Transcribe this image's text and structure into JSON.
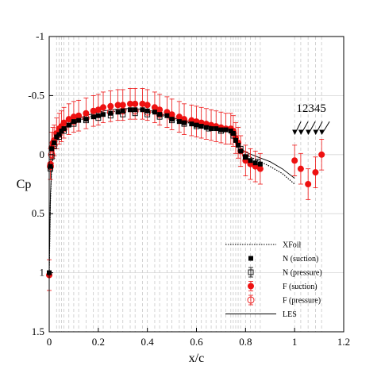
{
  "chart_data": {
    "type": "scatter",
    "xlabel": "x/c",
    "ylabel": "Cp",
    "xlim": [
      0,
      1.2
    ],
    "ylim": [
      -1,
      1.5
    ],
    "y_inverted": true,
    "xticks": [
      "0",
      "0.2",
      "0.4",
      "0.6",
      "0.8",
      "1",
      "1.2"
    ],
    "yticks": [
      "-1",
      "-0.5",
      "0",
      "0.5",
      "1",
      "1.5"
    ],
    "grid": "dashed vertical lines at pressure taps, solid horizontal lines at y ticks",
    "legend": {
      "position": "bottom-right",
      "entries": [
        "XFoil",
        "N (suction)",
        "N (pressure)",
        "F (suction)",
        "F (pressure)",
        "LES"
      ]
    },
    "annotation": {
      "text": "12345",
      "arrow_targets_x": [
        1.0,
        1.025,
        1.055,
        1.085,
        1.11
      ]
    },
    "series": [
      {
        "name": "XFoil",
        "style": "dotted",
        "x": [
          0,
          0.005,
          0.01,
          0.02,
          0.04,
          0.06,
          0.1,
          0.15,
          0.2,
          0.25,
          0.3,
          0.35,
          0.4,
          0.45,
          0.5,
          0.55,
          0.6,
          0.65,
          0.7,
          0.72,
          0.74,
          0.75,
          0.76,
          0.78,
          0.8,
          0.85,
          0.9,
          0.95,
          1.0
        ],
        "y": [
          1.0,
          0.4,
          0.1,
          -0.05,
          -0.15,
          -0.22,
          -0.28,
          -0.31,
          -0.34,
          -0.36,
          -0.38,
          -0.38,
          -0.37,
          -0.34,
          -0.3,
          -0.28,
          -0.25,
          -0.23,
          -0.22,
          -0.22,
          -0.21,
          -0.18,
          -0.12,
          -0.05,
          0.0,
          0.05,
          0.1,
          0.16,
          0.25
        ]
      },
      {
        "name": "LES",
        "style": "solid",
        "x": [
          0,
          0.005,
          0.01,
          0.02,
          0.04,
          0.06,
          0.1,
          0.15,
          0.2,
          0.25,
          0.3,
          0.35,
          0.4,
          0.45,
          0.5,
          0.55,
          0.6,
          0.65,
          0.7,
          0.72,
          0.74,
          0.75,
          0.76,
          0.78,
          0.8,
          0.85,
          0.9,
          0.95,
          1.0
        ],
        "y": [
          1.0,
          0.35,
          0.08,
          -0.08,
          -0.17,
          -0.23,
          -0.29,
          -0.33,
          -0.36,
          -0.38,
          -0.39,
          -0.39,
          -0.38,
          -0.35,
          -0.31,
          -0.29,
          -0.26,
          -0.24,
          -0.23,
          -0.22,
          -0.21,
          -0.19,
          -0.13,
          -0.06,
          -0.02,
          0.02,
          0.06,
          0.12,
          0.2
        ]
      },
      {
        "name": "N (suction)",
        "marker": "filled-square",
        "x": [
          0,
          0.005,
          0.01,
          0.02,
          0.03,
          0.04,
          0.05,
          0.06,
          0.08,
          0.1,
          0.12,
          0.15,
          0.18,
          0.2,
          0.22,
          0.25,
          0.28,
          0.3,
          0.33,
          0.35,
          0.38,
          0.4,
          0.43,
          0.45,
          0.48,
          0.5,
          0.53,
          0.55,
          0.58,
          0.6,
          0.62,
          0.64,
          0.66,
          0.68,
          0.7,
          0.72,
          0.74,
          0.75,
          0.76,
          0.77,
          0.78,
          0.8,
          0.82,
          0.84,
          0.86
        ],
        "y": [
          1.0,
          0.1,
          -0.05,
          -0.1,
          -0.15,
          -0.17,
          -0.2,
          -0.22,
          -0.25,
          -0.28,
          -0.29,
          -0.3,
          -0.32,
          -0.33,
          -0.34,
          -0.35,
          -0.36,
          -0.37,
          -0.38,
          -0.38,
          -0.38,
          -0.37,
          -0.36,
          -0.34,
          -0.33,
          -0.3,
          -0.28,
          -0.27,
          -0.26,
          -0.25,
          -0.24,
          -0.23,
          -0.22,
          -0.22,
          -0.21,
          -0.21,
          -0.2,
          -0.18,
          -0.12,
          -0.08,
          -0.03,
          0.02,
          0.05,
          0.07,
          0.08
        ]
      },
      {
        "name": "N (pressure)",
        "marker": "open-square",
        "x": [
          0.005,
          0.01,
          0.02,
          0.04,
          0.06,
          0.1,
          0.15,
          0.2,
          0.25,
          0.3,
          0.35,
          0.4,
          0.45,
          0.5,
          0.55,
          0.6,
          0.65,
          0.7,
          0.75,
          0.78,
          0.8,
          0.85
        ],
        "y": [
          0.12,
          0.02,
          -0.07,
          -0.15,
          -0.2,
          -0.26,
          -0.29,
          -0.31,
          -0.33,
          -0.34,
          -0.35,
          -0.34,
          -0.32,
          -0.29,
          -0.26,
          -0.24,
          -0.22,
          -0.2,
          -0.16,
          -0.05,
          0.02,
          0.06
        ]
      },
      {
        "name": "F (suction)",
        "marker": "filled-circle",
        "error_bar": 0.13,
        "x": [
          0,
          0.005,
          0.01,
          0.015,
          0.02,
          0.03,
          0.04,
          0.05,
          0.06,
          0.08,
          0.1,
          0.12,
          0.15,
          0.18,
          0.2,
          0.22,
          0.25,
          0.28,
          0.3,
          0.33,
          0.35,
          0.38,
          0.4,
          0.43,
          0.45,
          0.48,
          0.5,
          0.53,
          0.55,
          0.58,
          0.6,
          0.62,
          0.64,
          0.66,
          0.68,
          0.7,
          0.72,
          0.74,
          0.75,
          0.76,
          0.77,
          0.78,
          0.8,
          0.82,
          0.84,
          0.86,
          1.0,
          1.025,
          1.055,
          1.085,
          1.11
        ],
        "y": [
          1.02,
          0.08,
          -0.06,
          -0.1,
          -0.12,
          -0.18,
          -0.22,
          -0.24,
          -0.27,
          -0.3,
          -0.32,
          -0.33,
          -0.35,
          -0.37,
          -0.38,
          -0.4,
          -0.41,
          -0.42,
          -0.42,
          -0.43,
          -0.43,
          -0.43,
          -0.42,
          -0.4,
          -0.38,
          -0.36,
          -0.34,
          -0.32,
          -0.3,
          -0.29,
          -0.28,
          -0.27,
          -0.26,
          -0.25,
          -0.24,
          -0.23,
          -0.22,
          -0.22,
          -0.2,
          -0.14,
          -0.1,
          -0.03,
          0.05,
          0.08,
          0.1,
          0.12,
          0.05,
          0.12,
          0.25,
          0.15,
          0.0
        ]
      },
      {
        "name": "F (pressure)",
        "marker": "open-circle",
        "x": [
          0.005,
          0.01,
          0.02,
          0.04,
          0.06,
          0.1,
          0.15,
          0.2,
          0.25,
          0.3,
          0.35,
          0.4,
          0.45,
          0.5,
          0.55,
          0.6,
          0.65,
          0.7,
          0.75,
          0.8
        ],
        "y": [
          0.1,
          0.0,
          -0.08,
          -0.17,
          -0.22,
          -0.28,
          -0.31,
          -0.34,
          -0.36,
          -0.37,
          -0.37,
          -0.36,
          -0.34,
          -0.31,
          -0.28,
          -0.26,
          -0.24,
          -0.22,
          -0.18,
          0.0
        ]
      }
    ],
    "colors": {
      "N": "#000000",
      "F": "#ee1111",
      "lines": "#000000"
    }
  }
}
